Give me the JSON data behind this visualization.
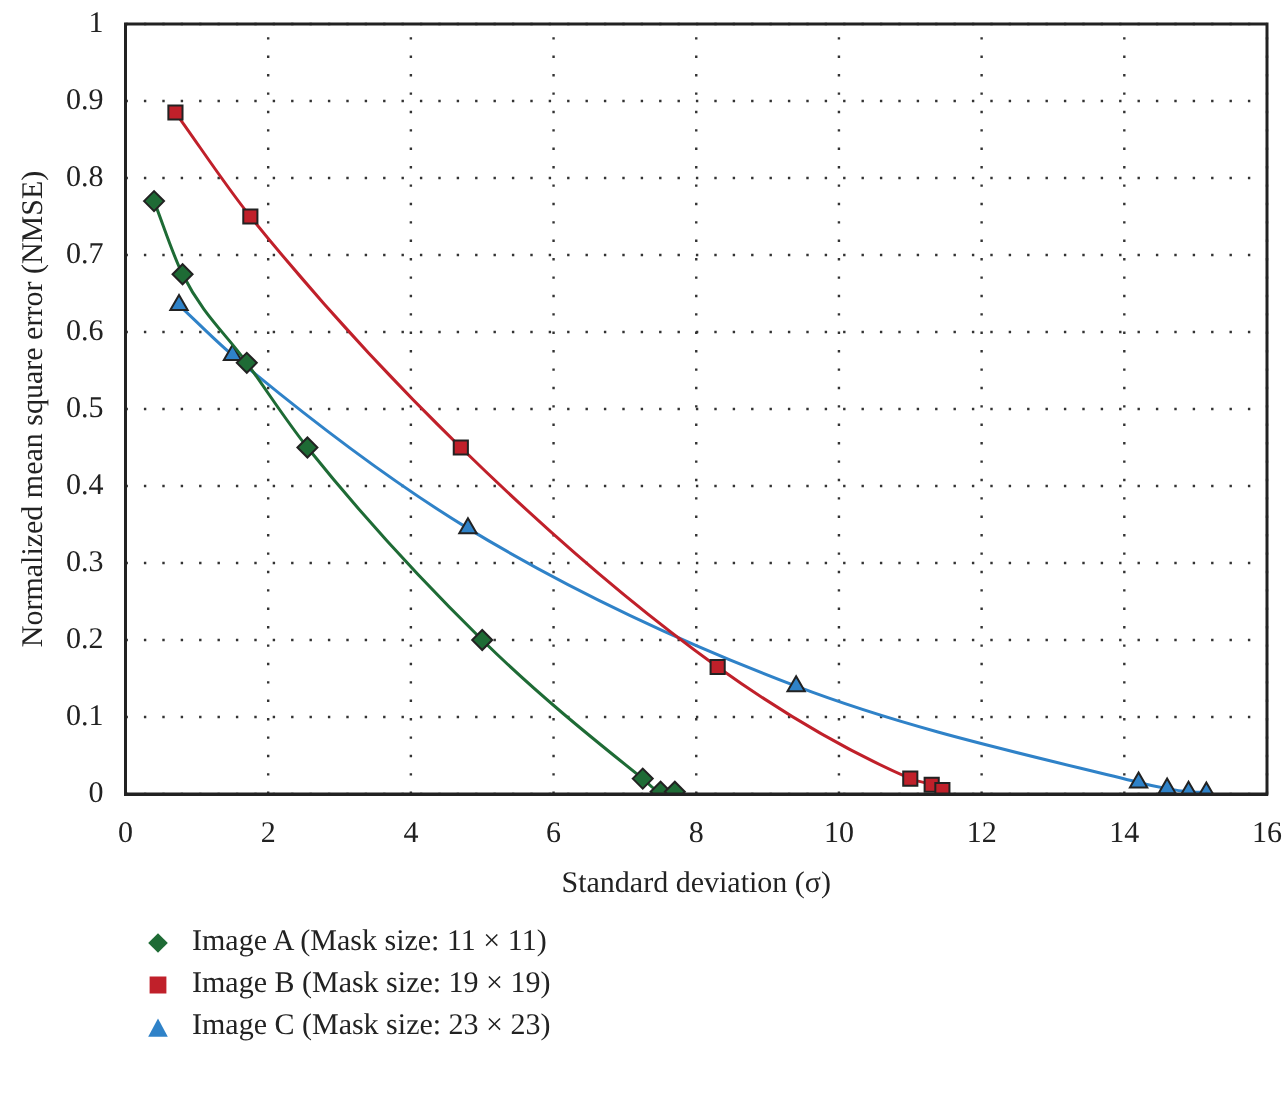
{
  "chart_data": {
    "type": "line",
    "xlabel": "Standard deviation (σ)",
    "ylabel": "Normalized mean square error (NMSE)",
    "xlim": [
      0,
      16
    ],
    "xticks": [
      0,
      2,
      4,
      6,
      8,
      10,
      12,
      14,
      16
    ],
    "ylim": [
      0,
      1
    ],
    "yticks": [
      0,
      0.1,
      0.2,
      0.3,
      0.4,
      0.5,
      0.6,
      0.7,
      0.8,
      0.9,
      1
    ],
    "grid": true,
    "legend": "bottom",
    "line_style": "solid",
    "series": [
      {
        "name": "Image A (Mask size: 11 × 11)",
        "color": "#1e6b35",
        "marker": "diamond",
        "x": [
          0.4,
          0.8,
          1.7,
          2.55,
          5.0,
          7.25,
          7.5,
          7.7
        ],
        "values": [
          0.77,
          0.675,
          0.56,
          0.45,
          0.2,
          0.02,
          0.003,
          0.003
        ]
      },
      {
        "name": "Image B (Mask size: 19 × 19)",
        "color": "#c0202a",
        "marker": "square",
        "x": [
          0.7,
          1.75,
          4.7,
          8.3,
          11.0,
          11.3,
          11.45
        ],
        "values": [
          0.885,
          0.75,
          0.45,
          0.165,
          0.02,
          0.012,
          0.005
        ]
      },
      {
        "name": "Image C (Mask size: 23 × 23)",
        "color": "#2f82c8",
        "marker": "triangle",
        "x": [
          0.75,
          1.5,
          4.8,
          9.4,
          14.2,
          14.6,
          14.9,
          15.15
        ],
        "values": [
          0.635,
          0.57,
          0.345,
          0.14,
          0.015,
          0.007,
          0.003,
          0.002
        ]
      }
    ]
  }
}
